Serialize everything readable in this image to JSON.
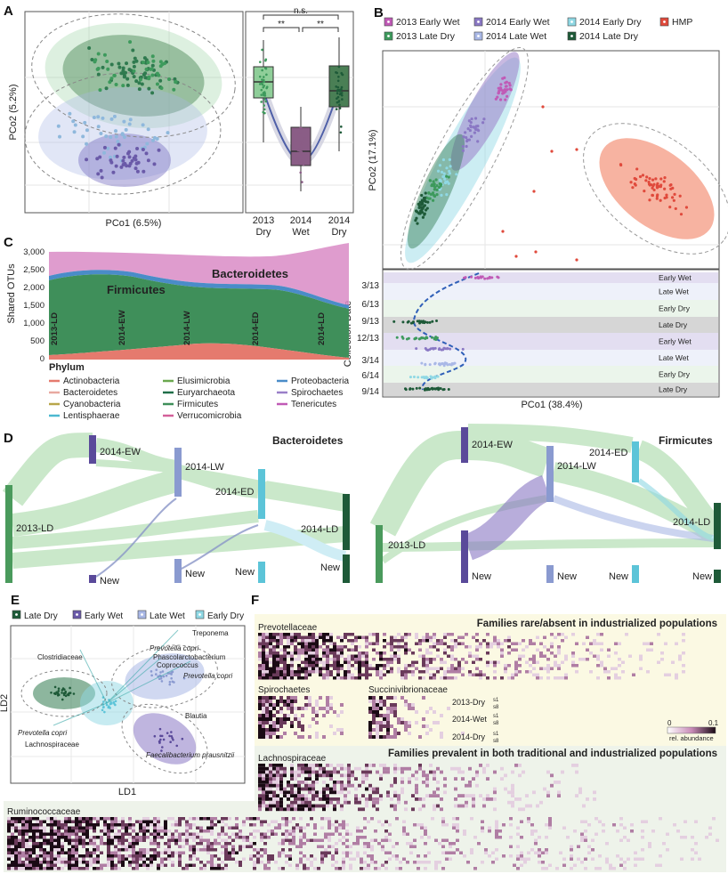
{
  "panel_labels": {
    "a": "A",
    "b": "B",
    "c": "C",
    "d": "D",
    "e": "E",
    "f": "F"
  },
  "panel_a": {
    "xlabel": "PCo1 (6.5%)",
    "ylabel": "PCo2 (5.2%)",
    "significance": {
      "top": "n.s.",
      "left": "**",
      "right": "**"
    },
    "box_groups": [
      {
        "line1": "2013",
        "line2": "Dry",
        "color": "#8fce99"
      },
      {
        "line1": "2014",
        "line2": "Wet",
        "color": "#8a5d86"
      },
      {
        "line1": "2014",
        "line2": "Dry",
        "color": "#4a7f55"
      }
    ]
  },
  "panel_b": {
    "legend": [
      {
        "label": "2013 Early Wet",
        "color": "#c05ab6"
      },
      {
        "label": "2014 Early Wet",
        "color": "#8a78c4"
      },
      {
        "label": "2014 Early Dry",
        "color": "#8fd8e4"
      },
      {
        "label": "HMP",
        "color": "#e04a3c"
      },
      {
        "label": "2013 Late Dry",
        "color": "#3d9a5c"
      },
      {
        "label": "2014 Late Wet",
        "color": "#a9b8e6"
      },
      {
        "label": "2014 Late Dry",
        "color": "#1e5a38"
      }
    ],
    "ylabel": "PCo2 (17.1%)",
    "xlabel": "PCo1 (38.4%)",
    "date_axis_label": "Collection Date",
    "date_ticks": [
      "3/13",
      "6/13",
      "9/13",
      "12/13",
      "3/14",
      "6/14",
      "9/14"
    ],
    "season_bands": [
      "Early Wet",
      "Late Wet",
      "Early Dry",
      "Late Dry",
      "Early Wet",
      "Late Wet",
      "Early Dry",
      "Late Dry"
    ]
  },
  "panel_c": {
    "ylabel": "Shared OTUs",
    "y_ticks": [
      "3,000",
      "2,500",
      "2,000",
      "1,500",
      "1,000",
      "500",
      "0"
    ],
    "stream_labels": {
      "bacteroidetes": "Bacteroidetes",
      "firmicutes": "Firmicutes"
    },
    "x_labels": [
      "2013-LD",
      "2014-EW",
      "2014-LW",
      "2014-ED",
      "2014-LD"
    ],
    "legend_title": "Phylum",
    "legend": [
      {
        "label": "Actinobacteria",
        "color": "#e57a6e"
      },
      {
        "label": "Elusimicrobia",
        "color": "#6ba84f"
      },
      {
        "label": "Proteobacteria",
        "color": "#4a8cc8"
      },
      {
        "label": "Bacteroidetes",
        "color": "#e8a9a0"
      },
      {
        "label": "Euryarchaeota",
        "color": "#1f6e48"
      },
      {
        "label": "Spirochaetes",
        "color": "#9a7fc8"
      },
      {
        "label": "Cyanobacteria",
        "color": "#b8a64a"
      },
      {
        "label": "Firmicutes",
        "color": "#3f8f5a"
      },
      {
        "label": "Tenericutes",
        "color": "#c05ab6"
      },
      {
        "label": "Lentisphaerae",
        "color": "#4cb8d0"
      },
      {
        "label": "Verrucomicrobia",
        "color": "#d4609a"
      }
    ]
  },
  "panel_d": {
    "left_title": "Bacteroidetes",
    "right_title": "Firmicutes",
    "left_nodes": {
      "ld13": "2013-LD",
      "ew": "2014-EW",
      "lw": "2014-LW",
      "ed": "2014-ED",
      "ld14": "2014-LD",
      "new": "New"
    },
    "right_nodes": {
      "ld13": "2013-LD",
      "ew": "2014-EW",
      "lw": "2014-LW",
      "ed": "2014-ED",
      "ld14": "2014-LD",
      "new": "New"
    }
  },
  "panel_e": {
    "legend": [
      {
        "label": "Late Dry",
        "color": "#1e5a38"
      },
      {
        "label": "Early Wet",
        "color": "#6a5aa8"
      },
      {
        "label": "Late Wet",
        "color": "#a9b8e6"
      },
      {
        "label": "Early Dry",
        "color": "#8fd8e4"
      }
    ],
    "xlabel": "LD1",
    "ylabel": "LD2",
    "taxa": {
      "treponema": "Treponema",
      "clostridiaceae": "Clostridiaceae",
      "prevotella_copri_a": "Prevotella copri",
      "phascolarctobacterium": "Phascolarctobacterium",
      "coprococcus": "Coprococcus",
      "prevotella_copri_b": "Prevotella copri",
      "blautia": "Blautia",
      "prevotella_copri_c": "Prevotella copri",
      "lachnospiraceae": "Lachnospiraceae",
      "faecalibacterium": "Faecalibacterium prausnitzii"
    }
  },
  "panel_f": {
    "header_rare": "Families rare/absent in industrialized populations",
    "header_prevalent": "Families prevalent in both traditional and industrialized populations",
    "families": {
      "prevotellaceae": "Prevotellaceae",
      "spirochaetes": "Spirochaetes",
      "succinivibrionaceae": "Succinivibrionaceae",
      "lachnospiraceae": "Lachnospiraceae",
      "ruminococcaceae": "Ruminococcaceae"
    },
    "seasons": [
      "2013-Dry",
      "2014-Wet",
      "2014-Dry"
    ],
    "season_marks": [
      "s1",
      "s8",
      "s1",
      "s8",
      "s1",
      "s8"
    ],
    "colorbar": {
      "min": "0",
      "max": "0.1",
      "label": "rel. abundance"
    }
  }
}
